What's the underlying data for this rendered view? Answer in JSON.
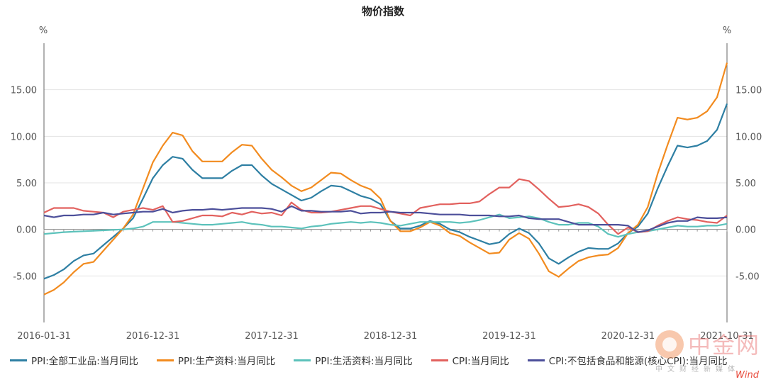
{
  "chart_data": {
    "type": "line",
    "title": "物价指数",
    "y_unit_left": "%",
    "y_unit_right": "%",
    "ylim": [
      -10,
      20
    ],
    "y_ticks": [
      "15.00",
      "10.00",
      "5.00",
      "0.00",
      "-5.00"
    ],
    "y_tick_values": [
      15,
      10,
      5,
      0,
      -5
    ],
    "x_tick_labels": [
      "2016-01-31",
      "2016-12-31",
      "2017-12-31",
      "2018-12-31",
      "2019-12-31",
      "2020-12-31",
      "2021-10-31"
    ],
    "x_tick_indices": [
      0,
      11,
      23,
      35,
      47,
      59,
      69
    ],
    "grid": true,
    "legend_position": "bottom",
    "series": [
      {
        "name": "PPI:全部工业品:当月同比",
        "color": "#2e7fa3",
        "values": [
          -5.3,
          -4.9,
          -4.3,
          -3.4,
          -2.8,
          -2.6,
          -1.7,
          -0.8,
          0.1,
          1.2,
          3.3,
          5.5,
          6.9,
          7.8,
          7.6,
          6.4,
          5.5,
          5.5,
          5.5,
          6.3,
          6.9,
          6.9,
          5.8,
          4.9,
          4.3,
          3.7,
          3.1,
          3.4,
          4.1,
          4.7,
          4.6,
          4.1,
          3.6,
          3.3,
          2.7,
          0.9,
          0.1,
          0.1,
          0.4,
          0.9,
          0.6,
          0.0,
          -0.3,
          -0.8,
          -1.2,
          -1.6,
          -1.4,
          -0.5,
          0.1,
          -0.4,
          -1.5,
          -3.1,
          -3.7,
          -3.0,
          -2.4,
          -2.0,
          -2.1,
          -2.1,
          -1.5,
          -0.4,
          0.3,
          1.7,
          4.4,
          6.8,
          9.0,
          8.8,
          9.0,
          9.5,
          10.7,
          13.5
        ]
      },
      {
        "name": "PPI:生产资料:当月同比",
        "color": "#f28b1f",
        "values": [
          -7.0,
          -6.5,
          -5.7,
          -4.6,
          -3.7,
          -3.5,
          -2.3,
          -1.1,
          0.1,
          1.6,
          4.4,
          7.2,
          9.0,
          10.4,
          10.1,
          8.4,
          7.3,
          7.3,
          7.3,
          8.3,
          9.1,
          9.0,
          7.6,
          6.4,
          5.6,
          4.7,
          4.1,
          4.5,
          5.3,
          6.1,
          6.0,
          5.3,
          4.7,
          4.3,
          3.3,
          0.9,
          -0.2,
          -0.2,
          0.2,
          0.8,
          0.4,
          -0.4,
          -0.7,
          -1.4,
          -2.0,
          -2.6,
          -2.5,
          -1.1,
          -0.4,
          -1.0,
          -2.6,
          -4.5,
          -5.1,
          -4.2,
          -3.4,
          -3.0,
          -2.8,
          -2.7,
          -2.0,
          -0.4,
          0.5,
          2.4,
          6.0,
          9.1,
          12.0,
          11.8,
          12.0,
          12.7,
          14.2,
          17.9
        ]
      },
      {
        "name": "PPI:生活资料:当月同比",
        "color": "#5cc2bb",
        "values": [
          -0.5,
          -0.4,
          -0.3,
          -0.25,
          -0.2,
          -0.15,
          -0.1,
          -0.05,
          0.0,
          0.1,
          0.3,
          0.8,
          0.8,
          0.8,
          0.7,
          0.6,
          0.5,
          0.5,
          0.6,
          0.7,
          0.8,
          0.6,
          0.5,
          0.3,
          0.3,
          0.2,
          0.1,
          0.3,
          0.4,
          0.6,
          0.7,
          0.8,
          0.7,
          0.8,
          0.7,
          0.5,
          0.4,
          0.6,
          0.8,
          0.8,
          0.8,
          0.8,
          0.7,
          0.8,
          1.0,
          1.3,
          1.6,
          1.2,
          1.3,
          1.4,
          1.2,
          0.8,
          0.5,
          0.5,
          0.7,
          0.7,
          0.3,
          -0.5,
          -0.8,
          -0.5,
          -0.3,
          -0.2,
          0.0,
          0.2,
          0.4,
          0.3,
          0.3,
          0.4,
          0.4,
          0.6
        ]
      },
      {
        "name": "CPI:当月同比",
        "color": "#e2615e",
        "values": [
          1.8,
          2.3,
          2.3,
          2.3,
          2.0,
          1.9,
          1.8,
          1.3,
          1.9,
          2.1,
          2.3,
          2.1,
          2.5,
          0.8,
          0.9,
          1.2,
          1.5,
          1.5,
          1.4,
          1.8,
          1.6,
          1.9,
          1.7,
          1.8,
          1.5,
          2.9,
          2.1,
          1.8,
          1.8,
          1.9,
          2.1,
          2.3,
          2.5,
          2.5,
          2.2,
          1.9,
          1.7,
          1.5,
          2.3,
          2.5,
          2.7,
          2.7,
          2.8,
          2.8,
          3.0,
          3.8,
          4.5,
          4.5,
          5.4,
          5.2,
          4.3,
          3.3,
          2.4,
          2.5,
          2.7,
          2.4,
          1.7,
          0.5,
          -0.5,
          0.2,
          -0.3,
          -0.2,
          0.4,
          0.9,
          1.3,
          1.1,
          1.0,
          0.8,
          0.7,
          1.5
        ]
      },
      {
        "name": "CPI:不包括食品和能源(核心CPI):当月同比",
        "color": "#4c4f9a",
        "values": [
          1.5,
          1.3,
          1.5,
          1.5,
          1.6,
          1.6,
          1.8,
          1.6,
          1.7,
          1.8,
          1.9,
          1.9,
          2.2,
          1.8,
          2.0,
          2.1,
          2.1,
          2.2,
          2.1,
          2.2,
          2.3,
          2.3,
          2.3,
          2.2,
          1.9,
          2.5,
          2.0,
          2.0,
          1.9,
          1.9,
          1.9,
          2.0,
          1.7,
          1.8,
          1.8,
          1.9,
          1.8,
          1.8,
          1.8,
          1.7,
          1.6,
          1.6,
          1.6,
          1.5,
          1.5,
          1.5,
          1.4,
          1.4,
          1.5,
          1.2,
          1.1,
          1.1,
          1.1,
          0.8,
          0.5,
          0.5,
          0.5,
          0.5,
          0.5,
          0.4,
          -0.3,
          -0.1,
          0.3,
          0.7,
          0.9,
          0.9,
          1.3,
          1.2,
          1.2,
          1.3
        ]
      }
    ]
  },
  "legend_items": [
    "PPI:全部工业品:当月同比",
    "PPI:生产资料:当月同比",
    "PPI:生活资料:当月同比",
    "CPI:当月同比",
    "CPI:不包括食品和能源(核心CPI):当月同比"
  ],
  "legend_colors": [
    "#2e7fa3",
    "#f28b1f",
    "#5cc2bb",
    "#e2615e",
    "#4c4f9a"
  ],
  "watermark": {
    "main": "中金网",
    "sub": "中文财经新媒体",
    "wind": "Wind"
  }
}
